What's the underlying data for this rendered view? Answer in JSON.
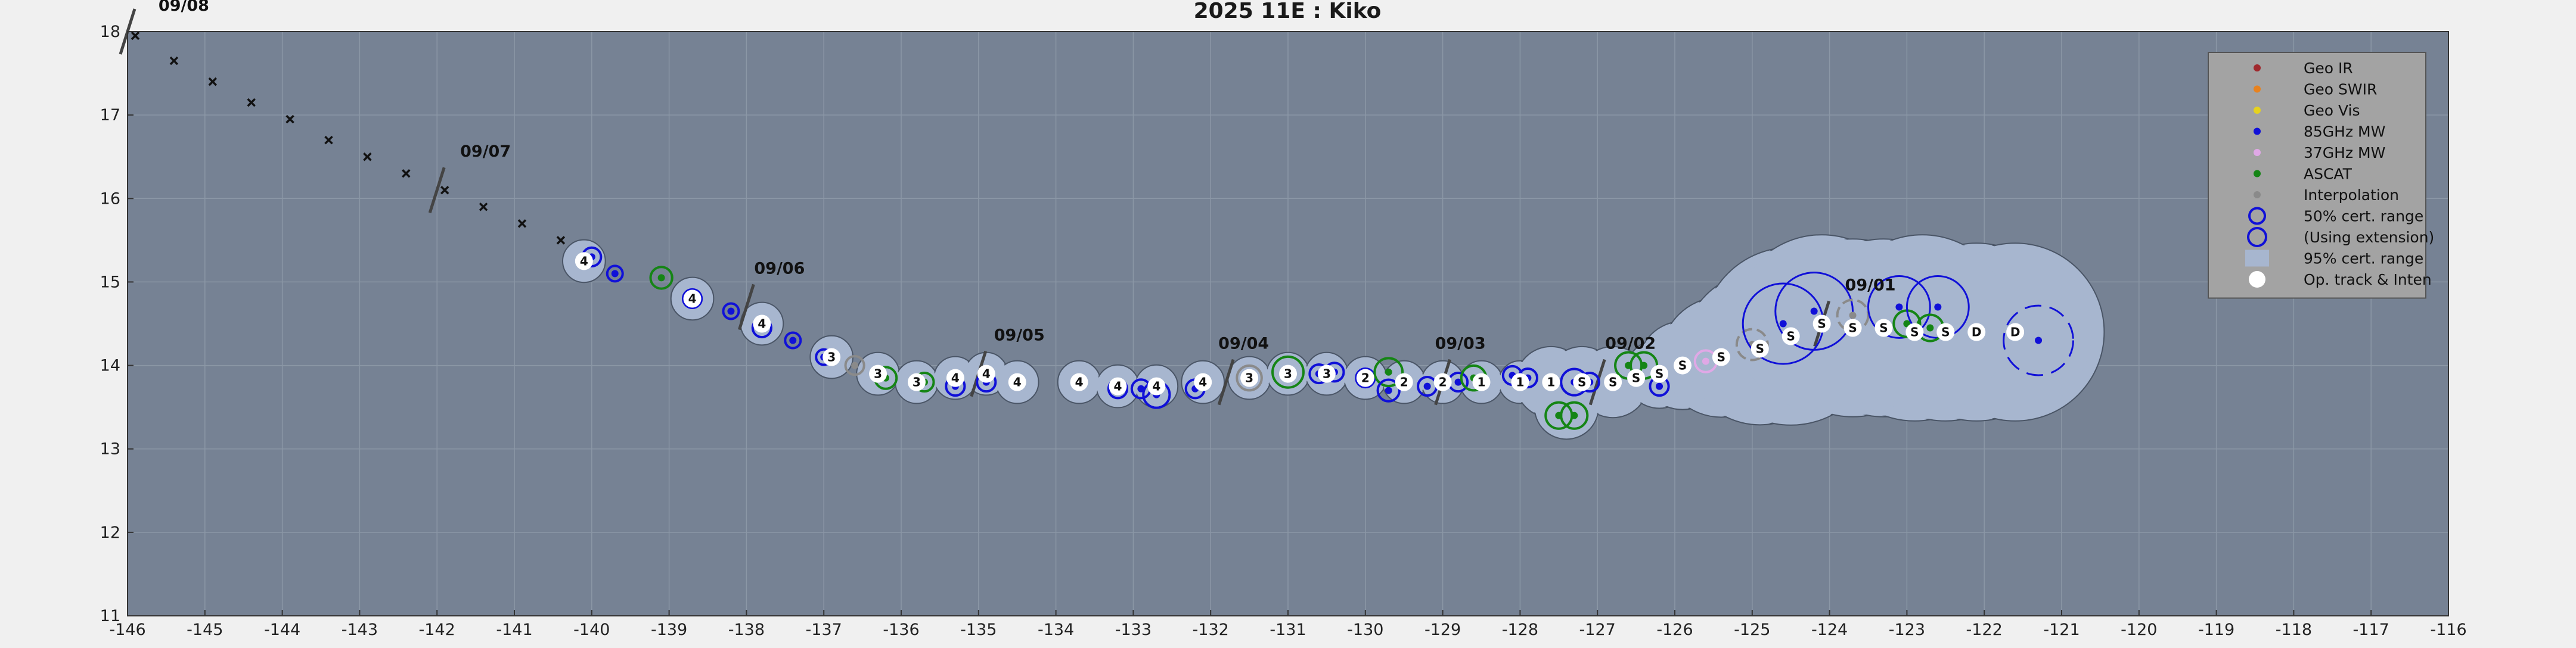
{
  "chart_data": {
    "type": "scatter",
    "title": "2025  11E :  Kiko",
    "xlim": [
      -146,
      -116
    ],
    "ylim": [
      11,
      18
    ],
    "x_ticks": [
      -146,
      -145,
      -144,
      -143,
      -142,
      -141,
      -140,
      -139,
      -138,
      -137,
      -136,
      -135,
      -134,
      -133,
      -132,
      -131,
      -130,
      -129,
      -128,
      -127,
      -126,
      -125,
      -124,
      -123,
      -122,
      -121,
      -120,
      -119,
      -118,
      -117,
      -116
    ],
    "y_ticks": [
      11,
      12,
      13,
      14,
      15,
      16,
      17,
      18
    ],
    "grid": true,
    "legend_position": "top-right",
    "colors": {
      "plot_bg": "#768294",
      "cone_fill": "#a7b6cf",
      "grid": "#8b97a6",
      "geo_ir": "#a0282d",
      "geo_swir": "#e8821e",
      "geo_vis": "#e6d21e",
      "mw85": "#1010d8",
      "mw37": "#e0a8e6",
      "ascat": "#158515",
      "interp": "#8a8a8a",
      "track": "#ffffff",
      "forecast_x": "#111111"
    },
    "legend": [
      {
        "label": "Geo IR",
        "kind": "dot",
        "color": "geo_ir"
      },
      {
        "label": "Geo SWIR",
        "kind": "dot",
        "color": "geo_swir"
      },
      {
        "label": "Geo Vis",
        "kind": "dot",
        "color": "geo_vis"
      },
      {
        "label": "85GHz MW",
        "kind": "dot",
        "color": "mw85"
      },
      {
        "label": "37GHz MW",
        "kind": "dot",
        "color": "mw37"
      },
      {
        "label": "ASCAT",
        "kind": "dot",
        "color": "ascat"
      },
      {
        "label": "Interpolation",
        "kind": "dot",
        "color": "interp"
      },
      {
        "label": "50% cert. range",
        "kind": "ring",
        "color": "mw85"
      },
      {
        "label": "(Using extension)",
        "kind": "ring2",
        "color": "mw85"
      },
      {
        "label": "95% cert. range",
        "kind": "box",
        "color": "cone_fill"
      },
      {
        "label": "Op. track & Inten",
        "kind": "white",
        "color": "track"
      }
    ],
    "date_labels": [
      {
        "text": "09/08",
        "x": -145.6,
        "y": 18.25
      },
      {
        "text": "09/07",
        "x": -141.7,
        "y": 16.5
      },
      {
        "text": "09/06",
        "x": -137.9,
        "y": 15.1
      },
      {
        "text": "09/05",
        "x": -134.8,
        "y": 14.3
      },
      {
        "text": "09/04",
        "x": -131.9,
        "y": 14.2
      },
      {
        "text": "09/03",
        "x": -129.1,
        "y": 14.2
      },
      {
        "text": "09/02",
        "x": -126.9,
        "y": 14.2
      },
      {
        "text": "09/01",
        "x": -123.8,
        "y": 14.9
      }
    ],
    "day_bars": [
      {
        "x": -146,
        "y": 18
      },
      {
        "x": -142,
        "y": 16.1
      },
      {
        "x": -138,
        "y": 14.7
      },
      {
        "x": -135,
        "y": 13.9
      },
      {
        "x": -131.8,
        "y": 13.8
      },
      {
        "x": -129,
        "y": 13.8
      },
      {
        "x": -127,
        "y": 13.8
      },
      {
        "x": -124.1,
        "y": 14.5
      }
    ],
    "forecast_points": [
      {
        "x": -145.9,
        "y": 17.95
      },
      {
        "x": -145.4,
        "y": 17.65
      },
      {
        "x": -144.9,
        "y": 17.4
      },
      {
        "x": -144.4,
        "y": 17.15
      },
      {
        "x": -143.9,
        "y": 16.95
      },
      {
        "x": -143.4,
        "y": 16.7
      },
      {
        "x": -142.9,
        "y": 16.5
      },
      {
        "x": -142.4,
        "y": 16.3
      },
      {
        "x": -141.9,
        "y": 16.1
      },
      {
        "x": -141.4,
        "y": 15.9
      },
      {
        "x": -140.9,
        "y": 15.7
      },
      {
        "x": -140.4,
        "y": 15.5
      }
    ],
    "track": [
      {
        "x": -140.1,
        "y": 15.25,
        "i": "4"
      },
      {
        "x": -138.7,
        "y": 14.8,
        "i": "4"
      },
      {
        "x": -137.8,
        "y": 14.5,
        "i": "4"
      },
      {
        "x": -136.9,
        "y": 14.1,
        "i": "3"
      },
      {
        "x": -136.3,
        "y": 13.9,
        "i": "3"
      },
      {
        "x": -135.8,
        "y": 13.8,
        "i": "3"
      },
      {
        "x": -135.3,
        "y": 13.85,
        "i": "4"
      },
      {
        "x": -134.9,
        "y": 13.9,
        "i": "4"
      },
      {
        "x": -134.5,
        "y": 13.8,
        "i": "4"
      },
      {
        "x": -133.7,
        "y": 13.8,
        "i": "4"
      },
      {
        "x": -133.2,
        "y": 13.75,
        "i": "4"
      },
      {
        "x": -132.7,
        "y": 13.75,
        "i": "4"
      },
      {
        "x": -132.1,
        "y": 13.8,
        "i": "4"
      },
      {
        "x": -131.5,
        "y": 13.85,
        "i": "3"
      },
      {
        "x": -131.0,
        "y": 13.9,
        "i": "3"
      },
      {
        "x": -130.5,
        "y": 13.9,
        "i": "3"
      },
      {
        "x": -130.0,
        "y": 13.85,
        "i": "2"
      },
      {
        "x": -129.5,
        "y": 13.8,
        "i": "2"
      },
      {
        "x": -129.0,
        "y": 13.8,
        "i": "2"
      },
      {
        "x": -128.5,
        "y": 13.8,
        "i": "1"
      },
      {
        "x": -128.0,
        "y": 13.8,
        "i": "1"
      },
      {
        "x": -127.6,
        "y": 13.8,
        "i": "1"
      },
      {
        "x": -127.2,
        "y": 13.8,
        "i": "S"
      },
      {
        "x": -126.8,
        "y": 13.8,
        "i": "S"
      },
      {
        "x": -126.5,
        "y": 13.85,
        "i": "S"
      },
      {
        "x": -126.2,
        "y": 13.9,
        "i": "S"
      },
      {
        "x": -125.9,
        "y": 14.0,
        "i": "S"
      },
      {
        "x": -125.4,
        "y": 14.1,
        "i": "S"
      },
      {
        "x": -124.9,
        "y": 14.2,
        "i": "S"
      },
      {
        "x": -124.5,
        "y": 14.35,
        "i": "S"
      },
      {
        "x": -124.1,
        "y": 14.5,
        "i": "S"
      },
      {
        "x": -123.7,
        "y": 14.45,
        "i": "S"
      },
      {
        "x": -123.3,
        "y": 14.45,
        "i": "S"
      },
      {
        "x": -122.9,
        "y": 14.4,
        "i": "S"
      },
      {
        "x": -122.5,
        "y": 14.4,
        "i": "S"
      },
      {
        "x": -122.1,
        "y": 14.4,
        "i": "D"
      },
      {
        "x": -121.6,
        "y": 14.4,
        "i": "D"
      }
    ],
    "fixes": [
      {
        "x": -140.0,
        "y": 15.3,
        "t": "mw85",
        "r": 0.12
      },
      {
        "x": -139.7,
        "y": 15.1,
        "t": "mw85",
        "r": 0.1
      },
      {
        "x": -139.1,
        "y": 15.05,
        "t": "ascat",
        "r": 0.14
      },
      {
        "x": -138.7,
        "y": 14.8,
        "t": "mw85",
        "r": 0.12
      },
      {
        "x": -138.2,
        "y": 14.65,
        "t": "mw85",
        "r": 0.1
      },
      {
        "x": -137.8,
        "y": 14.45,
        "t": "mw85",
        "r": 0.12
      },
      {
        "x": -137.4,
        "y": 14.3,
        "t": "mw85",
        "r": 0.1
      },
      {
        "x": -137.0,
        "y": 14.1,
        "t": "mw85",
        "r": 0.1
      },
      {
        "x": -136.6,
        "y": 14.0,
        "t": "interp",
        "r": 0.12
      },
      {
        "x": -136.2,
        "y": 13.85,
        "t": "ascat",
        "r": 0.14
      },
      {
        "x": -135.7,
        "y": 13.8,
        "t": "ascat",
        "r": 0.12
      },
      {
        "x": -135.3,
        "y": 13.75,
        "t": "mw85",
        "r": 0.12
      },
      {
        "x": -134.9,
        "y": 13.8,
        "t": "mw85",
        "r": 0.12
      },
      {
        "x": -133.2,
        "y": 13.72,
        "t": "mw85",
        "r": 0.12
      },
      {
        "x": -132.9,
        "y": 13.72,
        "t": "mw85",
        "r": 0.12
      },
      {
        "x": -132.7,
        "y": 13.65,
        "t": "mw85",
        "r": 0.17
      },
      {
        "x": -132.2,
        "y": 13.72,
        "t": "mw85",
        "r": 0.12
      },
      {
        "x": -131.5,
        "y": 13.85,
        "t": "interp",
        "r": 0.16
      },
      {
        "x": -131.0,
        "y": 13.92,
        "t": "ascat",
        "r": 0.2
      },
      {
        "x": -130.6,
        "y": 13.9,
        "t": "mw85",
        "r": 0.12
      },
      {
        "x": -130.4,
        "y": 13.92,
        "t": "mw85",
        "r": 0.12
      },
      {
        "x": -130.0,
        "y": 13.85,
        "t": "mw85",
        "r": 0.12
      },
      {
        "x": -129.7,
        "y": 13.92,
        "t": "ascat",
        "r": 0.18
      },
      {
        "x": -129.7,
        "y": 13.7,
        "t": "mw85",
        "r": 0.14
      },
      {
        "x": -129.2,
        "y": 13.75,
        "t": "mw85",
        "r": 0.12
      },
      {
        "x": -128.8,
        "y": 13.8,
        "t": "mw85",
        "r": 0.12
      },
      {
        "x": -128.6,
        "y": 13.85,
        "t": "ascat",
        "r": 0.16
      },
      {
        "x": -128.1,
        "y": 13.88,
        "t": "mw85",
        "r": 0.12
      },
      {
        "x": -127.9,
        "y": 13.85,
        "t": "mw85",
        "r": 0.12
      },
      {
        "x": -127.5,
        "y": 13.4,
        "t": "ascat",
        "r": 0.17
      },
      {
        "x": -127.3,
        "y": 13.4,
        "t": "ascat",
        "r": 0.17
      },
      {
        "x": -127.3,
        "y": 13.8,
        "t": "mw85",
        "r": 0.17
      },
      {
        "x": -127.1,
        "y": 13.8,
        "t": "mw85",
        "r": 0.12
      },
      {
        "x": -126.6,
        "y": 14.0,
        "t": "ascat",
        "r": 0.17
      },
      {
        "x": -126.4,
        "y": 14.0,
        "t": "ascat",
        "r": 0.17
      },
      {
        "x": -126.2,
        "y": 13.75,
        "t": "mw85",
        "r": 0.12
      },
      {
        "x": -125.6,
        "y": 14.05,
        "t": "mw37",
        "r": 0.14
      },
      {
        "x": -125.0,
        "y": 14.25,
        "t": "interp",
        "r": 0.2
      },
      {
        "x": -124.6,
        "y": 14.5,
        "t": "mw85",
        "r": 0.52
      },
      {
        "x": -124.2,
        "y": 14.65,
        "t": "mw85",
        "r": 0.5
      },
      {
        "x": -123.7,
        "y": 14.6,
        "t": "interp",
        "r": 0.2
      },
      {
        "x": -123.1,
        "y": 14.7,
        "t": "mw85",
        "r": 0.4
      },
      {
        "x": -123.0,
        "y": 14.5,
        "t": "ascat",
        "r": 0.17
      },
      {
        "x": -122.6,
        "y": 14.7,
        "t": "mw85",
        "r": 0.4
      },
      {
        "x": -122.7,
        "y": 14.45,
        "t": "ascat",
        "r": 0.17
      },
      {
        "x": -121.3,
        "y": 14.3,
        "t": "mw85",
        "r": 0.45
      }
    ]
  }
}
